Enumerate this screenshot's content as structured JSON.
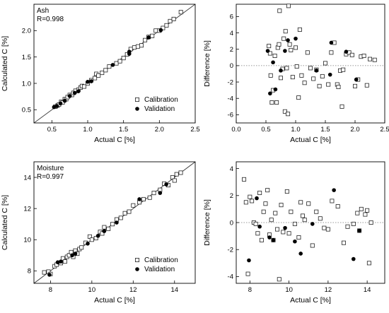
{
  "chart_data": [
    {
      "id": "ash-calc",
      "type": "scatter",
      "annotation": "Ash",
      "r_text": "R=0.998",
      "xlabel": "Actual C [%]",
      "ylabel": "Calculated C [%]",
      "xlim": [
        0.25,
        2.5
      ],
      "ylim": [
        0.25,
        2.5
      ],
      "xticks": [
        0.5,
        1.0,
        1.5,
        2.0,
        2.5
      ],
      "yticks": [
        0.5,
        1.0,
        1.5,
        2.0
      ],
      "xtick_labels": [
        "0.5",
        "1.0",
        "1.5",
        "2.0",
        "2.5"
      ],
      "ytick_labels": [
        "0.5",
        "1.0",
        "1.5",
        "2.0"
      ],
      "diagonal": true,
      "legend_position": "bottom-right",
      "series": [
        {
          "name": "Calibration",
          "marker": "open-square",
          "points": [
            [
              0.55,
              0.56
            ],
            [
              0.58,
              0.58
            ],
            [
              0.6,
              0.6
            ],
            [
              0.63,
              0.65
            ],
            [
              0.65,
              0.64
            ],
            [
              0.68,
              0.7
            ],
            [
              0.7,
              0.7
            ],
            [
              0.72,
              0.74
            ],
            [
              0.75,
              0.78
            ],
            [
              0.78,
              0.78
            ],
            [
              0.8,
              0.82
            ],
            [
              0.83,
              0.86
            ],
            [
              0.87,
              0.88
            ],
            [
              0.9,
              0.92
            ],
            [
              0.92,
              0.95
            ],
            [
              0.95,
              0.94
            ],
            [
              1.0,
              1.0
            ],
            [
              1.05,
              1.06
            ],
            [
              1.1,
              1.1
            ],
            [
              1.12,
              1.18
            ],
            [
              1.15,
              1.15
            ],
            [
              1.2,
              1.2
            ],
            [
              1.25,
              1.25
            ],
            [
              1.3,
              1.32
            ],
            [
              1.4,
              1.38
            ],
            [
              1.45,
              1.42
            ],
            [
              1.5,
              1.48
            ],
            [
              1.55,
              1.55
            ],
            [
              1.6,
              1.65
            ],
            [
              1.65,
              1.68
            ],
            [
              1.7,
              1.7
            ],
            [
              1.75,
              1.72
            ],
            [
              1.8,
              1.82
            ],
            [
              1.85,
              1.88
            ],
            [
              1.9,
              1.9
            ],
            [
              1.95,
              2.0
            ],
            [
              2.0,
              2.0
            ],
            [
              2.05,
              2.05
            ],
            [
              2.1,
              2.1
            ],
            [
              2.15,
              2.18
            ],
            [
              2.2,
              2.22
            ],
            [
              2.3,
              2.35
            ]
          ]
        },
        {
          "name": "Validation",
          "marker": "filled-circle",
          "points": [
            [
              0.53,
              0.55
            ],
            [
              0.57,
              0.57
            ],
            [
              0.62,
              0.62
            ],
            [
              0.68,
              0.67
            ],
            [
              0.75,
              0.76
            ],
            [
              0.82,
              0.82
            ],
            [
              0.87,
              0.85
            ],
            [
              1.0,
              1.03
            ],
            [
              1.05,
              1.04
            ],
            [
              1.35,
              1.35
            ],
            [
              1.58,
              1.6
            ],
            [
              1.58,
              1.56
            ],
            [
              1.85,
              1.87
            ],
            [
              2.02,
              2.01
            ]
          ]
        }
      ]
    },
    {
      "id": "ash-diff",
      "type": "scatter",
      "xlabel": "Actual C [%]",
      "ylabel": "Difference [%]",
      "xlim": [
        0.0,
        2.5
      ],
      "ylim": [
        -7,
        7.5
      ],
      "xticks": [
        0.0,
        0.5,
        1.0,
        1.5,
        2.0,
        2.5
      ],
      "yticks": [
        -6,
        -4,
        -2,
        0,
        2,
        4,
        6
      ],
      "xtick_labels": [
        "0.0",
        "0.5",
        "1.0",
        "1.5",
        "2.0",
        "2.5"
      ],
      "ytick_labels": [
        "-6",
        "-4",
        "-2",
        "0",
        "2",
        "4",
        "6"
      ],
      "zero_line": true,
      "series": [
        {
          "name": "Calibration",
          "marker": "open-square",
          "points": [
            [
              0.55,
              2.4
            ],
            [
              0.57,
              1.5
            ],
            [
              0.58,
              -1.2
            ],
            [
              0.6,
              -4.5
            ],
            [
              0.62,
              -3.0
            ],
            [
              0.65,
              1.2
            ],
            [
              0.68,
              -4.5
            ],
            [
              0.7,
              2.2
            ],
            [
              0.72,
              2.6
            ],
            [
              0.73,
              6.7
            ],
            [
              0.75,
              -1.5
            ],
            [
              0.78,
              -0.4
            ],
            [
              0.8,
              3.3
            ],
            [
              0.82,
              -5.6
            ],
            [
              0.83,
              4.2
            ],
            [
              0.85,
              -0.3
            ],
            [
              0.87,
              -5.9
            ],
            [
              0.88,
              7.3
            ],
            [
              0.9,
              2.6
            ],
            [
              0.92,
              1.9
            ],
            [
              0.95,
              -1.4
            ],
            [
              1.0,
              2.2
            ],
            [
              1.02,
              -0.1
            ],
            [
              1.05,
              -3.9
            ],
            [
              1.07,
              4.4
            ],
            [
              1.1,
              -1.2
            ],
            [
              1.15,
              -2.1
            ],
            [
              1.2,
              1.6
            ],
            [
              1.25,
              -0.3
            ],
            [
              1.3,
              -1.6
            ],
            [
              1.35,
              -0.5
            ],
            [
              1.4,
              -2.5
            ],
            [
              1.45,
              -1.3
            ],
            [
              1.5,
              0.3
            ],
            [
              1.55,
              -2.3
            ],
            [
              1.6,
              1.6
            ],
            [
              1.65,
              2.8
            ],
            [
              1.7,
              -2.3
            ],
            [
              1.72,
              -2.6
            ],
            [
              1.75,
              -0.6
            ],
            [
              1.78,
              -5.0
            ],
            [
              1.8,
              -0.5
            ],
            [
              1.85,
              1.4
            ],
            [
              1.9,
              1.6
            ],
            [
              1.95,
              1.3
            ],
            [
              2.0,
              -2.5
            ],
            [
              2.05,
              -1.7
            ],
            [
              2.1,
              1.1
            ],
            [
              2.15,
              1.2
            ],
            [
              2.2,
              -2.4
            ],
            [
              2.25,
              0.8
            ],
            [
              2.33,
              0.7
            ]
          ]
        },
        {
          "name": "Validation",
          "marker": "filled-circle",
          "points": [
            [
              0.53,
              1.8
            ],
            [
              0.57,
              -3.4
            ],
            [
              0.62,
              0.4
            ],
            [
              0.66,
              -2.9
            ],
            [
              0.75,
              -0.6
            ],
            [
              0.82,
              1.8
            ],
            [
              0.87,
              3.1
            ],
            [
              1.0,
              3.3
            ],
            [
              1.35,
              -0.6
            ],
            [
              1.58,
              -1.1
            ],
            [
              1.6,
              2.8
            ],
            [
              1.85,
              1.7
            ],
            [
              2.02,
              -1.7
            ]
          ]
        }
      ]
    },
    {
      "id": "moisture-calc",
      "type": "scatter",
      "annotation": "Moisture",
      "r_text": "R=0.997",
      "xlabel": "Actual C [%]",
      "ylabel": "Calculated C [%]",
      "xlim": [
        7.2,
        15.0
      ],
      "ylim": [
        7.2,
        15.0
      ],
      "xticks": [
        8,
        10,
        12,
        14
      ],
      "yticks": [
        8,
        10,
        12,
        14
      ],
      "xtick_labels": [
        "8",
        "10",
        "12",
        "14"
      ],
      "ytick_labels": [
        "8",
        "10",
        "12",
        "14"
      ],
      "diagonal": true,
      "legend_position": "bottom-right",
      "series": [
        {
          "name": "Calibration",
          "marker": "open-square",
          "points": [
            [
              7.7,
              7.9
            ],
            [
              7.9,
              7.95
            ],
            [
              8.0,
              7.8
            ],
            [
              8.2,
              8.3
            ],
            [
              8.3,
              8.4
            ],
            [
              8.5,
              8.5
            ],
            [
              8.6,
              8.8
            ],
            [
              8.7,
              8.6
            ],
            [
              8.8,
              8.9
            ],
            [
              8.9,
              9.0
            ],
            [
              9.0,
              9.2
            ],
            [
              9.1,
              8.9
            ],
            [
              9.2,
              9.3
            ],
            [
              9.3,
              9.1
            ],
            [
              9.4,
              9.4
            ],
            [
              9.5,
              9.5
            ],
            [
              9.7,
              9.8
            ],
            [
              9.9,
              10.2
            ],
            [
              10.0,
              10.0
            ],
            [
              10.2,
              10.1
            ],
            [
              10.4,
              10.5
            ],
            [
              10.5,
              10.4
            ],
            [
              10.6,
              10.8
            ],
            [
              10.8,
              10.7
            ],
            [
              11.0,
              11.0
            ],
            [
              11.2,
              11.3
            ],
            [
              11.4,
              11.4
            ],
            [
              11.6,
              11.7
            ],
            [
              11.8,
              11.8
            ],
            [
              12.0,
              12.2
            ],
            [
              12.3,
              12.4
            ],
            [
              12.5,
              12.6
            ],
            [
              12.8,
              12.7
            ],
            [
              13.0,
              13.0
            ],
            [
              13.3,
              13.2
            ],
            [
              13.5,
              13.6
            ],
            [
              13.7,
              13.5
            ],
            [
              13.9,
              14.0
            ],
            [
              14.0,
              13.8
            ],
            [
              14.1,
              14.2
            ],
            [
              14.3,
              14.3
            ]
          ]
        },
        {
          "name": "Validation",
          "marker": "filled-circle",
          "points": [
            [
              7.95,
              7.75
            ],
            [
              8.35,
              8.55
            ],
            [
              8.5,
              8.6
            ],
            [
              9.05,
              9.0
            ],
            [
              9.2,
              9.1
            ],
            [
              9.8,
              9.75
            ],
            [
              10.3,
              10.25
            ],
            [
              10.6,
              10.55
            ],
            [
              11.2,
              11.1
            ],
            [
              12.3,
              12.6
            ],
            [
              13.3,
              13.0
            ],
            [
              13.6,
              13.55
            ]
          ]
        }
      ]
    },
    {
      "id": "moisture-diff",
      "type": "scatter",
      "xlabel": "Actual C [%]",
      "ylabel": "Difference [%]",
      "xlim": [
        7.3,
        14.9
      ],
      "ylim": [
        -4.5,
        4.5
      ],
      "xticks": [
        8,
        10,
        12,
        14
      ],
      "yticks": [
        -4,
        -2,
        0,
        2,
        4
      ],
      "xtick_labels": [
        "8",
        "10",
        "12",
        "14"
      ],
      "ytick_labels": [
        "-4",
        "-2",
        "0",
        "2",
        "4"
      ],
      "zero_line": true,
      "series": [
        {
          "name": "Calibration",
          "marker": "open-square",
          "points": [
            [
              7.7,
              3.2
            ],
            [
              7.8,
              1.5
            ],
            [
              7.9,
              -3.8
            ],
            [
              8.0,
              1.9
            ],
            [
              8.1,
              1.6
            ],
            [
              8.2,
              0.0
            ],
            [
              8.3,
              -0.1
            ],
            [
              8.4,
              -0.8
            ],
            [
              8.5,
              2.2
            ],
            [
              8.6,
              -1.3
            ],
            [
              8.7,
              0.8
            ],
            [
              8.8,
              1.4
            ],
            [
              8.9,
              2.4
            ],
            [
              9.0,
              -0.9
            ],
            [
              9.1,
              0.2
            ],
            [
              9.2,
              -1.3
            ],
            [
              9.3,
              0.7
            ],
            [
              9.4,
              -0.5
            ],
            [
              9.5,
              -4.2
            ],
            [
              9.6,
              1.3
            ],
            [
              9.7,
              -0.7
            ],
            [
              9.9,
              2.3
            ],
            [
              10.0,
              -0.8
            ],
            [
              10.1,
              0.8
            ],
            [
              10.3,
              -0.1
            ],
            [
              10.5,
              -1.1
            ],
            [
              10.6,
              1.5
            ],
            [
              10.7,
              0.5
            ],
            [
              10.8,
              0.2
            ],
            [
              11.0,
              1.4
            ],
            [
              11.2,
              -1.7
            ],
            [
              11.4,
              0.8
            ],
            [
              11.6,
              0.3
            ],
            [
              11.8,
              -0.4
            ],
            [
              12.0,
              -0.5
            ],
            [
              12.2,
              1.6
            ],
            [
              12.5,
              1.2
            ],
            [
              12.8,
              -1.5
            ],
            [
              13.0,
              -0.3
            ],
            [
              13.3,
              -0.1
            ],
            [
              13.5,
              0.7
            ],
            [
              13.6,
              -0.6
            ],
            [
              13.7,
              1.0
            ],
            [
              13.9,
              0.6
            ],
            [
              14.0,
              0.9
            ],
            [
              14.1,
              -3.0
            ],
            [
              14.2,
              0.0
            ]
          ]
        },
        {
          "name": "Validation",
          "marker": "filled-circle",
          "points": [
            [
              7.95,
              -2.8
            ],
            [
              8.35,
              1.8
            ],
            [
              8.5,
              -0.3
            ],
            [
              9.0,
              -1.1
            ],
            [
              9.2,
              -1.3
            ],
            [
              9.8,
              -0.4
            ],
            [
              10.3,
              -1.4
            ],
            [
              10.6,
              -2.3
            ],
            [
              11.2,
              -0.1
            ],
            [
              12.3,
              2.4
            ],
            [
              13.3,
              -2.7
            ],
            [
              13.6,
              -0.6
            ]
          ]
        }
      ]
    }
  ]
}
